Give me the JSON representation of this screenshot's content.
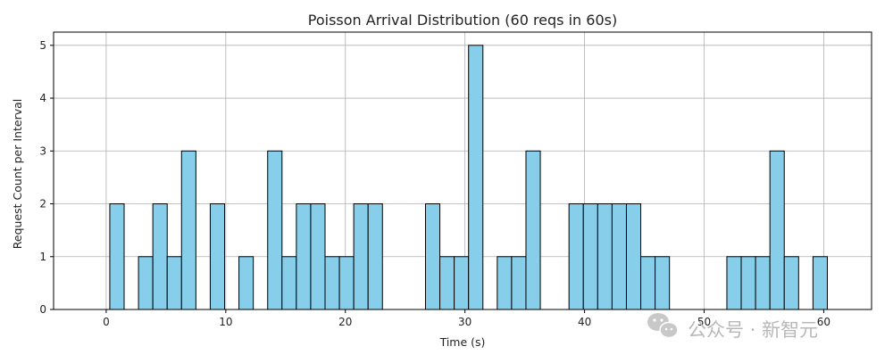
{
  "chart_data": {
    "type": "bar",
    "title": "Poisson Arrival Distribution (60 reqs in 60s)",
    "xlabel": "Time (s)",
    "ylabel": "Request Count per Interval",
    "xlim": [
      -4.4,
      64.0
    ],
    "ylim": [
      0,
      5.25
    ],
    "xticks": [
      0,
      10,
      20,
      30,
      40,
      50,
      60
    ],
    "xtick_labels": [
      "0",
      "10",
      "20",
      "30",
      "40",
      "50",
      "60"
    ],
    "yticks": [
      0,
      1,
      2,
      3,
      4,
      5
    ],
    "ytick_labels": [
      "0",
      "1",
      "2",
      "3",
      "4",
      "5"
    ],
    "grid": true,
    "legend": "none",
    "bar_width": 1.2,
    "bar_color": "#87CEEB",
    "edge_color": "#000000",
    "bars": [
      {
        "x": 0.3,
        "value": 2
      },
      {
        "x": 2.7,
        "value": 1
      },
      {
        "x": 3.9,
        "value": 2
      },
      {
        "x": 5.1,
        "value": 1
      },
      {
        "x": 6.3,
        "value": 3
      },
      {
        "x": 8.7,
        "value": 2
      },
      {
        "x": 11.1,
        "value": 1
      },
      {
        "x": 13.5,
        "value": 3
      },
      {
        "x": 14.7,
        "value": 1
      },
      {
        "x": 15.9,
        "value": 2
      },
      {
        "x": 17.1,
        "value": 2
      },
      {
        "x": 18.3,
        "value": 1
      },
      {
        "x": 19.5,
        "value": 1
      },
      {
        "x": 20.7,
        "value": 2
      },
      {
        "x": 21.9,
        "value": 2
      },
      {
        "x": 26.7,
        "value": 2
      },
      {
        "x": 27.9,
        "value": 1
      },
      {
        "x": 29.1,
        "value": 1
      },
      {
        "x": 30.3,
        "value": 5
      },
      {
        "x": 32.7,
        "value": 1
      },
      {
        "x": 33.9,
        "value": 1
      },
      {
        "x": 35.1,
        "value": 3
      },
      {
        "x": 38.7,
        "value": 2
      },
      {
        "x": 39.9,
        "value": 2
      },
      {
        "x": 41.1,
        "value": 2
      },
      {
        "x": 42.3,
        "value": 2
      },
      {
        "x": 43.5,
        "value": 2
      },
      {
        "x": 44.7,
        "value": 1
      },
      {
        "x": 45.9,
        "value": 1
      },
      {
        "x": 51.9,
        "value": 1
      },
      {
        "x": 53.1,
        "value": 1
      },
      {
        "x": 54.3,
        "value": 1
      },
      {
        "x": 55.5,
        "value": 3
      },
      {
        "x": 56.7,
        "value": 1
      },
      {
        "x": 59.1,
        "value": 1
      }
    ]
  },
  "watermark": {
    "text": "公众号 · 新智元",
    "icon": "wechat-icon",
    "color": "#b8b8b8"
  }
}
